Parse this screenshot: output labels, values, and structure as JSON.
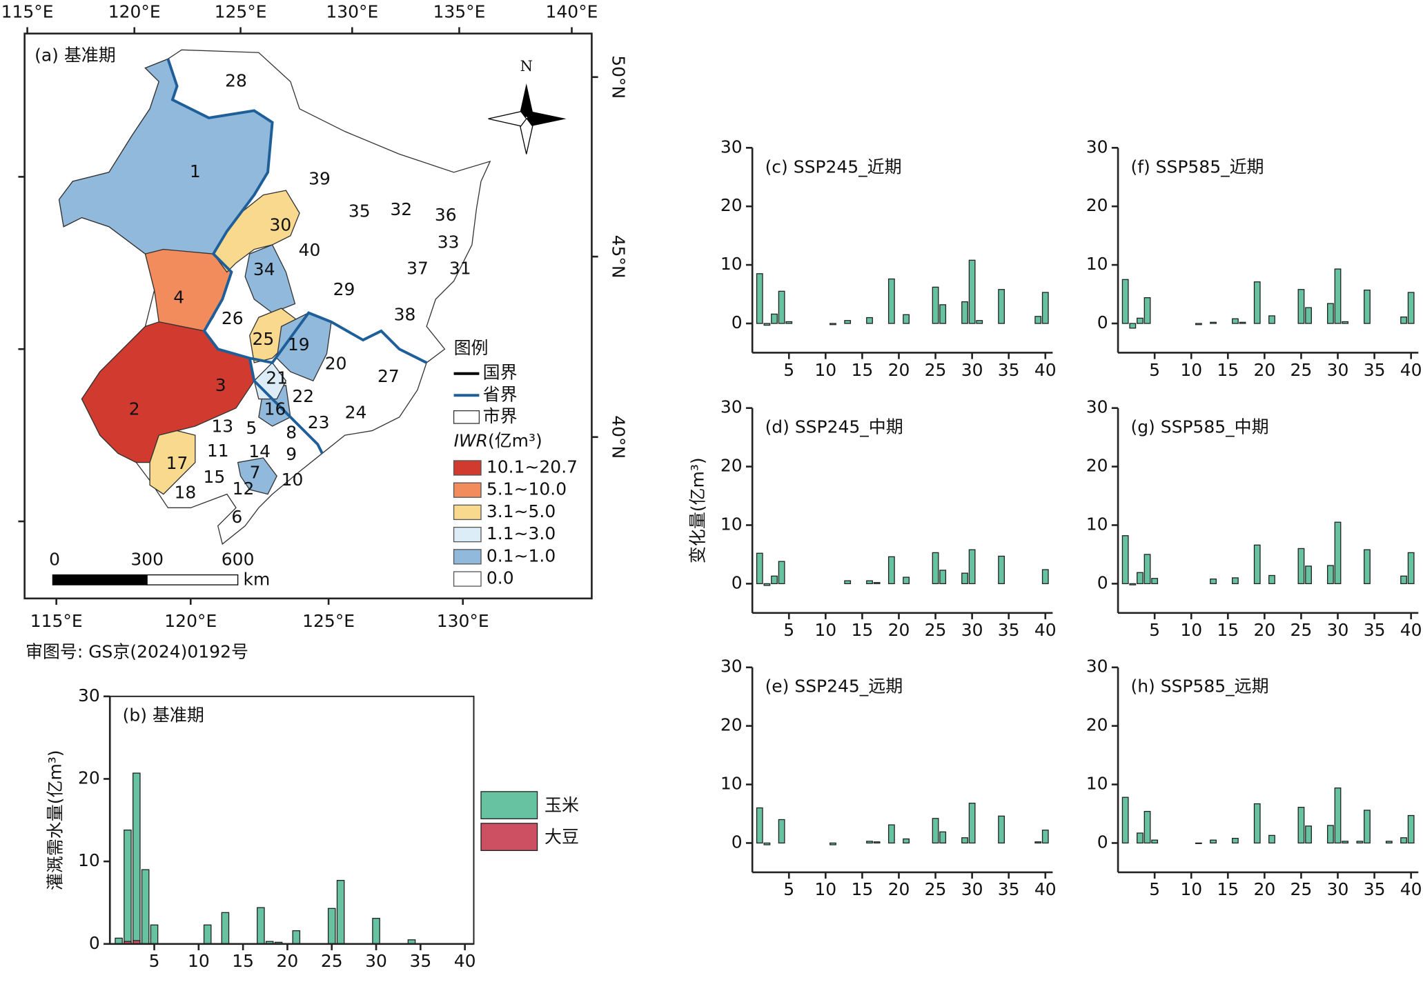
{
  "map": {
    "title": "(a) 基准期",
    "approval": "审图号: GS京(2024)0192号",
    "top_lon_labels": [
      "115°E",
      "120°E",
      "125°E",
      "130°E",
      "135°E",
      "140°E"
    ],
    "bottom_lon_labels": [
      "115°E",
      "120°E",
      "125°E",
      "130°E"
    ],
    "lat_labels": [
      "50°N",
      "45°N",
      "40°N"
    ],
    "north": "N",
    "legend_title": "图例",
    "boundaries": [
      "国界",
      "省界",
      "市界"
    ],
    "iwr_label": "IWR",
    "iwr_unit": "(亿m³)",
    "classes": [
      {
        "label": "10.1~20.7",
        "color": "#d13a2e"
      },
      {
        "label": "5.1~10.0",
        "color": "#f28c5c"
      },
      {
        "label": "3.1~5.0",
        "color": "#f8d98e"
      },
      {
        "label": "1.1~3.0",
        "color": "#dcedf7"
      },
      {
        "label": "0.1~1.0",
        "color": "#91b9dc"
      },
      {
        "label": "0.0",
        "color": "#ffffff"
      }
    ],
    "scale_labels": [
      "0",
      "300",
      "600"
    ],
    "scale_unit": "km",
    "region_labels": [
      "1",
      "2",
      "3",
      "4",
      "5",
      "6",
      "7",
      "8",
      "9",
      "10",
      "11",
      "12",
      "13",
      "14",
      "15",
      "16",
      "17",
      "18",
      "19",
      "20",
      "21",
      "22",
      "23",
      "24",
      "25",
      "26",
      "27",
      "28",
      "29",
      "30",
      "31",
      "32",
      "33",
      "34",
      "35",
      "36",
      "37",
      "38",
      "39",
      "40"
    ]
  },
  "chart_data": [
    {
      "type": "bar",
      "title": "(b) 基准期",
      "ylabel": "灌溉需水量(亿m³)",
      "frame": true,
      "x": [
        1,
        2,
        3,
        4,
        5,
        6,
        7,
        8,
        9,
        10,
        11,
        12,
        13,
        14,
        15,
        16,
        17,
        18,
        19,
        20,
        21,
        22,
        23,
        24,
        25,
        26,
        27,
        28,
        29,
        30,
        31,
        32,
        33,
        34,
        35,
        36,
        37,
        38,
        39,
        40
      ],
      "series": [
        {
          "name": "玉米",
          "color": "#66c2a0",
          "values": [
            0.7,
            13.8,
            20.7,
            9.0,
            2.3,
            0,
            0,
            0,
            0,
            0,
            2.3,
            0,
            3.8,
            0,
            0,
            0,
            4.4,
            0.3,
            0.2,
            0,
            1.6,
            0,
            0,
            0,
            4.3,
            7.7,
            0,
            0,
            0,
            3.1,
            0,
            0,
            0,
            0.5,
            0,
            0,
            0,
            0,
            0,
            0
          ]
        },
        {
          "name": "大豆",
          "color": "#cc5062",
          "values": [
            0,
            0.3,
            0.4,
            0,
            0,
            0,
            0,
            0,
            0,
            0,
            0,
            0,
            0,
            0,
            0,
            0,
            0,
            0,
            0,
            0,
            0,
            0,
            0,
            0,
            0,
            0,
            0,
            0,
            0,
            0,
            0,
            0,
            0,
            0,
            0,
            0,
            0,
            0,
            0,
            0
          ]
        }
      ],
      "xlim": [
        0,
        41
      ],
      "ylim": [
        0,
        30
      ],
      "xticks": [
        5,
        10,
        15,
        20,
        25,
        30,
        35,
        40
      ],
      "yticks": [
        0,
        10,
        20,
        30
      ]
    },
    {
      "type": "bar",
      "title": "(c) SSP245_近期",
      "x": [
        1,
        2,
        3,
        4,
        5,
        6,
        7,
        8,
        9,
        10,
        11,
        12,
        13,
        14,
        15,
        16,
        17,
        18,
        19,
        20,
        21,
        22,
        23,
        24,
        25,
        26,
        27,
        28,
        29,
        30,
        31,
        32,
        33,
        34,
        35,
        36,
        37,
        38,
        39,
        40
      ],
      "series": [
        {
          "color": "#66c2a0",
          "values": [
            8.5,
            -0.3,
            1.6,
            5.5,
            0.3,
            0,
            0,
            0,
            0,
            0,
            -0.2,
            0,
            0.5,
            0,
            0,
            1.0,
            0,
            0,
            7.6,
            0,
            1.5,
            0,
            0,
            0,
            6.2,
            3.2,
            0,
            0,
            3.7,
            10.8,
            0.5,
            0,
            0,
            5.8,
            0,
            0,
            0,
            0,
            1.2,
            5.3
          ]
        }
      ],
      "xlim": [
        0,
        41
      ],
      "ylim": [
        -5,
        30
      ],
      "xticks": [
        5,
        10,
        15,
        20,
        25,
        30,
        35,
        40
      ],
      "yticks": [
        0,
        10,
        20,
        30
      ]
    },
    {
      "type": "bar",
      "title": "(d) SSP245_中期",
      "ylabel": "变化量(亿m³)",
      "x": [
        1,
        2,
        3,
        4,
        5,
        6,
        7,
        8,
        9,
        10,
        11,
        12,
        13,
        14,
        15,
        16,
        17,
        18,
        19,
        20,
        21,
        22,
        23,
        24,
        25,
        26,
        27,
        28,
        29,
        30,
        31,
        32,
        33,
        34,
        35,
        36,
        37,
        38,
        39,
        40
      ],
      "series": [
        {
          "color": "#66c2a0",
          "values": [
            5.2,
            -0.3,
            1.3,
            3.8,
            0,
            0,
            0,
            0,
            0,
            0,
            0,
            0,
            0.5,
            0,
            0,
            0.5,
            0.2,
            0,
            4.6,
            0,
            1.1,
            0,
            0,
            0,
            5.3,
            2.3,
            0,
            0,
            1.8,
            5.8,
            0,
            0,
            0,
            4.7,
            0,
            0,
            0,
            0,
            0,
            2.4
          ]
        }
      ],
      "xlim": [
        0,
        41
      ],
      "ylim": [
        -5,
        30
      ],
      "xticks": [
        5,
        10,
        15,
        20,
        25,
        30,
        35,
        40
      ],
      "yticks": [
        0,
        10,
        20,
        30
      ]
    },
    {
      "type": "bar",
      "title": "(e) SSP245_远期",
      "x": [
        1,
        2,
        3,
        4,
        5,
        6,
        7,
        8,
        9,
        10,
        11,
        12,
        13,
        14,
        15,
        16,
        17,
        18,
        19,
        20,
        21,
        22,
        23,
        24,
        25,
        26,
        27,
        28,
        29,
        30,
        31,
        32,
        33,
        34,
        35,
        36,
        37,
        38,
        39,
        40
      ],
      "series": [
        {
          "color": "#66c2a0",
          "values": [
            6.0,
            -0.3,
            0,
            4.0,
            0,
            0,
            0,
            0,
            0,
            0,
            -0.3,
            0,
            0,
            0,
            0,
            0.3,
            0.2,
            0,
            3.1,
            0,
            0.7,
            0,
            0,
            0,
            4.2,
            1.9,
            0,
            0,
            0.9,
            6.8,
            0,
            0,
            0,
            4.6,
            0,
            0,
            0,
            0,
            0.2,
            2.2
          ]
        }
      ],
      "xlim": [
        0,
        41
      ],
      "ylim": [
        -5,
        30
      ],
      "xticks": [
        5,
        10,
        15,
        20,
        25,
        30,
        35,
        40
      ],
      "yticks": [
        0,
        10,
        20,
        30
      ]
    },
    {
      "type": "bar",
      "title": "(f) SSP585_近期",
      "x": [
        1,
        2,
        3,
        4,
        5,
        6,
        7,
        8,
        9,
        10,
        11,
        12,
        13,
        14,
        15,
        16,
        17,
        18,
        19,
        20,
        21,
        22,
        23,
        24,
        25,
        26,
        27,
        28,
        29,
        30,
        31,
        32,
        33,
        34,
        35,
        36,
        37,
        38,
        39,
        40
      ],
      "series": [
        {
          "color": "#66c2a0",
          "values": [
            7.5,
            -0.8,
            0.9,
            4.4,
            0,
            0,
            0,
            0,
            0,
            0,
            -0.2,
            0,
            0.2,
            0,
            0,
            0.8,
            0.2,
            0,
            7.1,
            0,
            1.3,
            0,
            0,
            0,
            5.8,
            2.7,
            0,
            0,
            3.4,
            9.3,
            0.3,
            0,
            0,
            5.7,
            0,
            0,
            0,
            0,
            1.1,
            5.3
          ]
        }
      ],
      "xlim": [
        0,
        41
      ],
      "ylim": [
        -5,
        30
      ],
      "xticks": [
        5,
        10,
        15,
        20,
        25,
        30,
        35,
        40
      ],
      "yticks": [
        0,
        10,
        20,
        30
      ]
    },
    {
      "type": "bar",
      "title": "(g) SSP585_中期",
      "x": [
        1,
        2,
        3,
        4,
        5,
        6,
        7,
        8,
        9,
        10,
        11,
        12,
        13,
        14,
        15,
        16,
        17,
        18,
        19,
        20,
        21,
        22,
        23,
        24,
        25,
        26,
        27,
        28,
        29,
        30,
        31,
        32,
        33,
        34,
        35,
        36,
        37,
        38,
        39,
        40
      ],
      "series": [
        {
          "color": "#66c2a0",
          "values": [
            8.2,
            -0.2,
            1.9,
            5.0,
            0.9,
            0,
            0,
            0,
            0,
            0,
            0,
            0,
            0.8,
            0,
            0,
            1.0,
            0,
            0,
            6.6,
            0,
            1.4,
            0,
            0,
            0,
            6.0,
            3.0,
            0,
            0,
            3.1,
            10.5,
            0,
            0,
            0,
            5.8,
            0,
            0,
            0,
            0,
            1.3,
            5.3
          ]
        }
      ],
      "xlim": [
        0,
        41
      ],
      "ylim": [
        -5,
        30
      ],
      "xticks": [
        5,
        10,
        15,
        20,
        25,
        30,
        35,
        40
      ],
      "yticks": [
        0,
        10,
        20,
        30
      ]
    },
    {
      "type": "bar",
      "title": "(h) SSP585_远期",
      "x": [
        1,
        2,
        3,
        4,
        5,
        6,
        7,
        8,
        9,
        10,
        11,
        12,
        13,
        14,
        15,
        16,
        17,
        18,
        19,
        20,
        21,
        22,
        23,
        24,
        25,
        26,
        27,
        28,
        29,
        30,
        31,
        32,
        33,
        34,
        35,
        36,
        37,
        38,
        39,
        40
      ],
      "series": [
        {
          "color": "#66c2a0",
          "values": [
            7.8,
            0,
            1.7,
            5.4,
            0.5,
            0,
            0,
            0,
            0,
            0,
            -0.1,
            0,
            0.5,
            0,
            0,
            0.8,
            0,
            0,
            6.7,
            0,
            1.3,
            0,
            0,
            0,
            6.1,
            2.9,
            0,
            0,
            3.0,
            9.4,
            0.3,
            0,
            0.3,
            5.6,
            0,
            0,
            0.3,
            0,
            0.9,
            4.7
          ]
        }
      ],
      "xlim": [
        0,
        41
      ],
      "ylim": [
        -5,
        30
      ],
      "xticks": [
        5,
        10,
        15,
        20,
        25,
        30,
        35,
        40
      ],
      "yticks": [
        0,
        10,
        20,
        30
      ]
    }
  ]
}
